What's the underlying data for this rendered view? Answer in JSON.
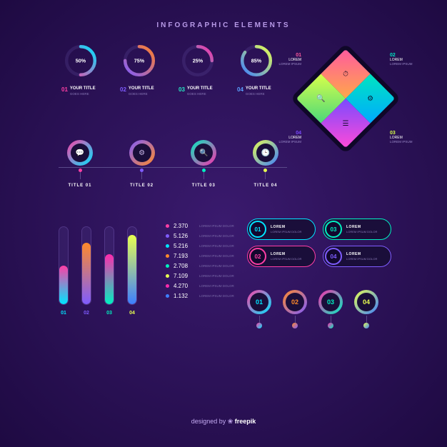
{
  "header": {
    "title": "INFOGRAPHIC ELEMENTS"
  },
  "colors": {
    "bg_center": "#3a1a6e",
    "bg_edge": "#1e0a42"
  },
  "donuts": {
    "title": "YOUR TITLE",
    "subtitle": "GOES HERE",
    "items": [
      {
        "num": "01",
        "pct": 50,
        "label": "50%",
        "grad_from": "#ff3ea5",
        "grad_to": "#00e5ff",
        "num_color": "#ff3ea5"
      },
      {
        "num": "02",
        "pct": 75,
        "label": "75%",
        "grad_from": "#7f5cff",
        "grad_to": "#ff7f2a",
        "num_color": "#7f5cff"
      },
      {
        "num": "03",
        "pct": 25,
        "label": "25%",
        "grad_from": "#00f0c0",
        "grad_to": "#ff2aad",
        "num_color": "#26e8c5"
      },
      {
        "num": "04",
        "pct": 85,
        "label": "85%",
        "grad_from": "#3d7fff",
        "grad_to": "#e8ff50",
        "num_color": "#5aa0ff"
      }
    ]
  },
  "diamond": {
    "quads": [
      {
        "num": "01",
        "grad_from": "#ff5a9e",
        "grad_to": "#ffa84a",
        "icon": "⏱"
      },
      {
        "num": "02",
        "grad_from": "#00e5c0",
        "grad_to": "#00aaff",
        "icon": "⚙"
      },
      {
        "num": "03",
        "grad_from": "#d8ff4a",
        "grad_to": "#4ad87a",
        "icon": "🔍"
      },
      {
        "num": "04",
        "grad_from": "#7a4aff",
        "grad_to": "#ff4ad8",
        "icon": "☰"
      }
    ],
    "label_title": "LOREM",
    "label_sub": "LOREM IPSUM"
  },
  "timeline": {
    "items": [
      {
        "title": "TITLE 01",
        "icon": "💬",
        "grad_from": "#ff3ea5",
        "grad_to": "#00e5ff"
      },
      {
        "title": "TITLE 02",
        "icon": "⚙",
        "grad_from": "#7f5cff",
        "grad_to": "#ff8a2a"
      },
      {
        "title": "TITLE 03",
        "icon": "🔍",
        "grad_from": "#00f0c0",
        "grad_to": "#ff2aad"
      },
      {
        "title": "TITLE 04",
        "icon": "🕒",
        "grad_from": "#e8ff50",
        "grad_to": "#3d7fff"
      }
    ]
  },
  "vbars": {
    "items": [
      {
        "num": "01",
        "pct": 50,
        "grad_from": "#ff3ea5",
        "grad_to": "#00e5ff",
        "label_color": "#00e5ff"
      },
      {
        "num": "02",
        "pct": 80,
        "grad_from": "#ff8a2a",
        "grad_to": "#7f5cff",
        "label_color": "#7f5cff"
      },
      {
        "num": "03",
        "pct": 65,
        "grad_from": "#ff2aad",
        "grad_to": "#00f0c0",
        "label_color": "#00f0c0"
      },
      {
        "num": "04",
        "pct": 90,
        "grad_from": "#e8ff50",
        "grad_to": "#3d7fff",
        "label_color": "#e8ff50"
      }
    ]
  },
  "numlist": {
    "subtitle": "LOREM IPSUM DOLOR",
    "items": [
      {
        "val": "2.370",
        "color": "#ff3ea5"
      },
      {
        "val": "5.126",
        "color": "#7f5cff"
      },
      {
        "val": "5.216",
        "color": "#00e5ff"
      },
      {
        "val": "7.193",
        "color": "#ff8a2a"
      },
      {
        "val": "2.708",
        "color": "#00f0c0"
      },
      {
        "val": "7.109",
        "color": "#e8ff50"
      },
      {
        "val": "4.270",
        "color": "#ff2aad"
      },
      {
        "val": "1.132",
        "color": "#3d7fff"
      }
    ]
  },
  "pills": {
    "title": "LOREM",
    "subtitle": "LOREM IPSUM DOLOR",
    "items": [
      {
        "num": "01",
        "border": "#00e5ff",
        "num_color": "#00e5ff"
      },
      {
        "num": "03",
        "border": "#00f0c0",
        "num_color": "#00f0c0"
      },
      {
        "num": "02",
        "border": "#ff3ea5",
        "num_color": "#ff3ea5"
      },
      {
        "num": "04",
        "border": "#7f5cff",
        "num_color": "#7f5cff"
      }
    ]
  },
  "rings": {
    "items": [
      {
        "num": "01",
        "grad_from": "#ff3ea5",
        "grad_to": "#00e5ff",
        "num_color": "#00e5ff"
      },
      {
        "num": "02",
        "grad_from": "#ff8a2a",
        "grad_to": "#7f5cff",
        "num_color": "#ff8a2a"
      },
      {
        "num": "03",
        "grad_from": "#ff2aad",
        "grad_to": "#00f0c0",
        "num_color": "#00f0c0"
      },
      {
        "num": "04",
        "grad_from": "#e8ff50",
        "grad_to": "#3d7fff",
        "num_color": "#e8ff50"
      }
    ]
  },
  "footer": {
    "prefix": "designed by ",
    "icon": "❀",
    "brand": "freepik"
  }
}
